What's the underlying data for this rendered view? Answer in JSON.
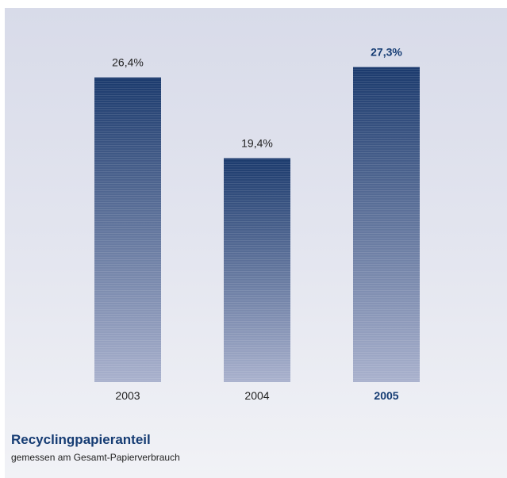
{
  "chart_data": {
    "type": "bar",
    "title": "Recyclingpapieranteil",
    "subtitle": "gemessen am Gesamt-Papierverbrauch",
    "categories": [
      "2003",
      "2004",
      "2005"
    ],
    "values": [
      26.4,
      19.4,
      27.3
    ],
    "data_labels": [
      "26,4%",
      "19,4%",
      "27,3%"
    ],
    "highlighted_category": "2005",
    "ylim": [
      0,
      28.3
    ],
    "grid": false,
    "xlabel": "",
    "ylabel": "",
    "colors": {
      "bar_top": "#1b3a6d",
      "bar_bottom": "#a9b1cd",
      "highlight_text": "#153c73",
      "text": "#222222"
    }
  }
}
